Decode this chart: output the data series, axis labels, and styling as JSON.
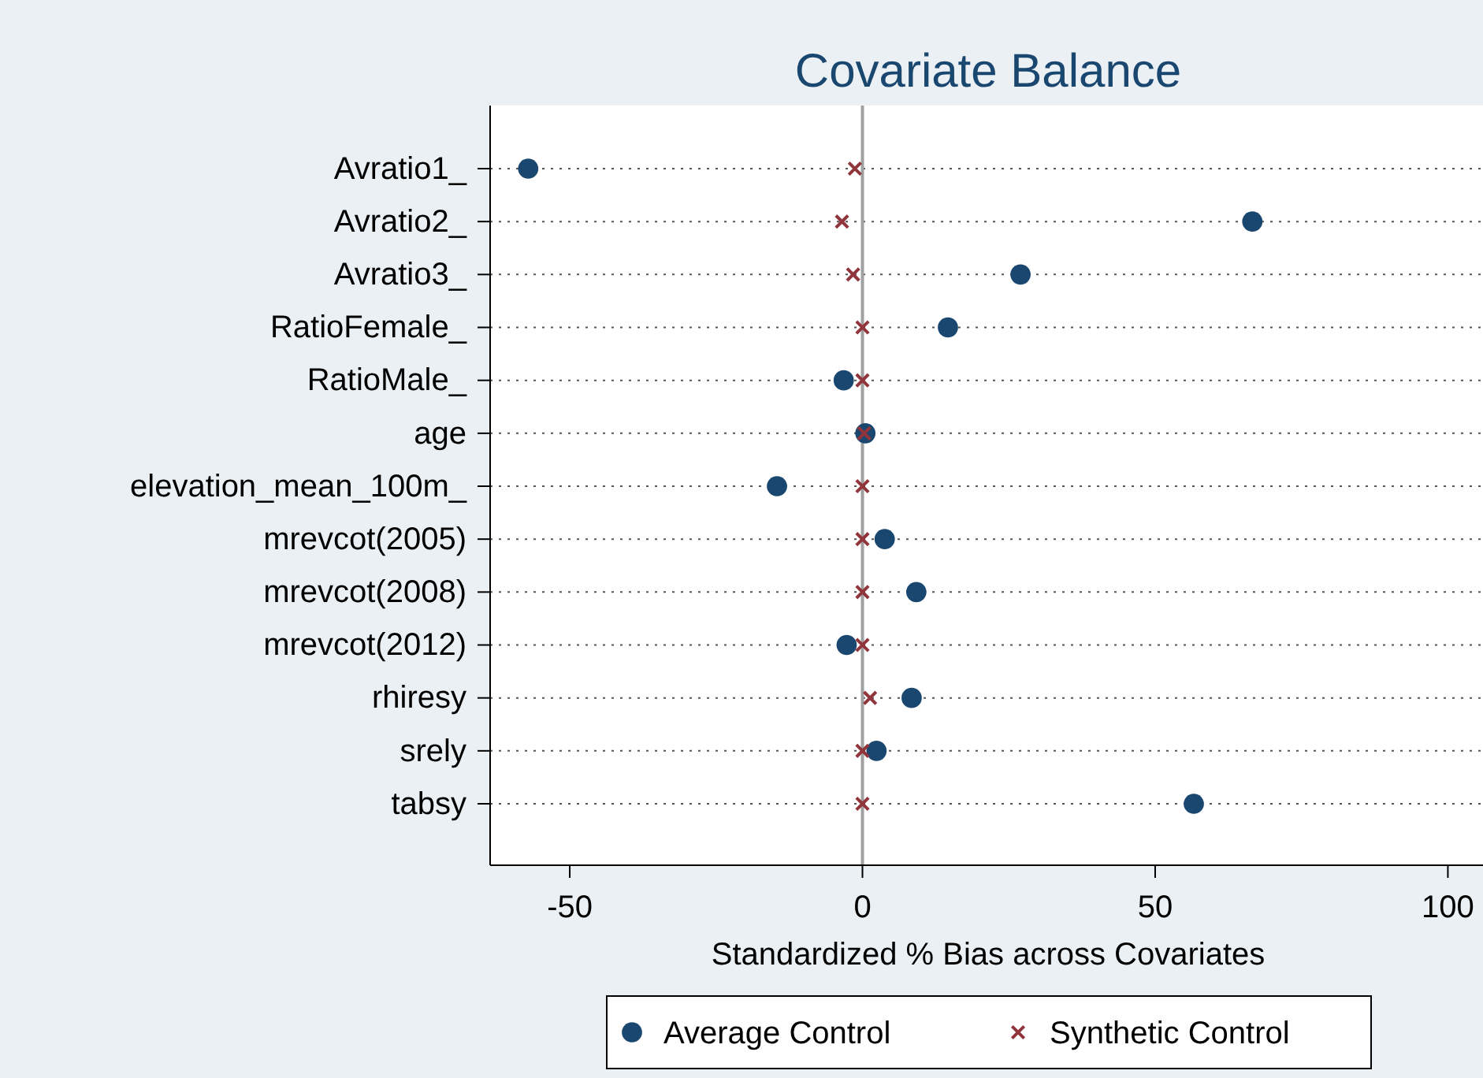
{
  "chart_data": {
    "type": "scatter",
    "title": "Covariate Balance",
    "xlabel": "Standardized % Bias across Covariates",
    "orientation": "horizontal",
    "categories": [
      "Avratio1_",
      "Avratio2_",
      "Avratio3_",
      "RatioFemale_",
      "RatioMale_",
      "age",
      "elevation_mean_100m_",
      "mrevcot(2005)",
      "mrevcot(2008)",
      "mrevcot(2012)",
      "rhiresy",
      "srely",
      "tabsy"
    ],
    "series": [
      {
        "name": "Average Control",
        "color": "#1a476f",
        "marker": "circle",
        "values": [
          -57.1,
          66.6,
          27.0,
          14.6,
          -3.2,
          0.5,
          -14.6,
          3.8,
          9.2,
          -2.7,
          8.4,
          2.4,
          56.6
        ]
      },
      {
        "name": "Synthetic Control",
        "color": "#90353b",
        "marker": "cross",
        "values": [
          -1.3,
          -3.5,
          -1.6,
          0,
          0,
          0.3,
          0,
          0,
          0,
          0,
          1.3,
          0,
          0
        ]
      }
    ],
    "xlim": [
      -63.6,
      106
    ],
    "xticks": [
      -50,
      0,
      50,
      100
    ],
    "grid": "y",
    "legend": "bottom",
    "ref_lines": [
      {
        "axis": "x",
        "value": 0,
        "color": "#a0a0a0"
      }
    ]
  }
}
